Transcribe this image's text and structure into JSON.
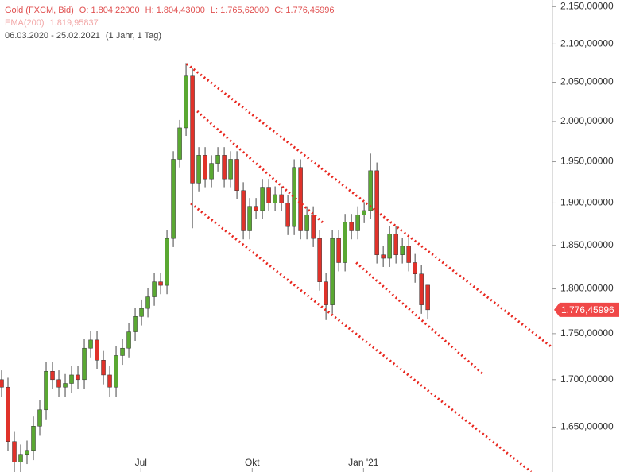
{
  "chart_data": {
    "type": "candlestick",
    "title": "Gold (FXCM, Bid)",
    "ohlc_info": [
      "O: 1.804,22000",
      "H: 1.804,43000",
      "L: 1.765,62000",
      "C: 1.776,45996"
    ],
    "indicator": {
      "name": "EMA(200)",
      "value_text": "1.819,95837"
    },
    "range_text": "06.03.2020 - 25.02.2021",
    "period_text": "(1 Jahr, 1 Tag)",
    "last_label": "1.776,45996",
    "up_color": "#5aa832",
    "down_color": "#e0322a",
    "trendline_color": "#e8261e",
    "log_scale": true,
    "open": [
      1700,
      1692,
      1635,
      1614,
      1622,
      1626,
      1651,
      1668,
      1709,
      1700,
      1692,
      1696,
      1705,
      1700,
      1734,
      1743,
      1721,
      1705,
      1692,
      1726,
      1734,
      1752,
      1769,
      1778,
      1791,
      1808,
      1804,
      1858,
      1953,
      1992,
      2058,
      1924,
      1958,
      1929,
      1948,
      1958,
      1929,
      1953,
      1915,
      1867,
      1896,
      1891,
      1919,
      1900,
      1910,
      1900,
      1872,
      1943,
      1867,
      1886,
      1858,
      1808,
      1782,
      1858,
      1830,
      1877,
      1867,
      1886,
      1891,
      1939,
      1839,
      1835,
      1863,
      1839,
      1849,
      1830,
      1817,
      1804.22
    ],
    "high": [
      1710,
      1702,
      1645,
      1632,
      1636,
      1661,
      1678,
      1719,
      1719,
      1710,
      1706,
      1715,
      1715,
      1744,
      1753,
      1753,
      1731,
      1715,
      1736,
      1744,
      1762,
      1779,
      1788,
      1801,
      1818,
      1818,
      1868,
      1963,
      2002,
      2075,
      2068,
      1968,
      1968,
      1958,
      1968,
      1968,
      1963,
      1963,
      1925,
      1906,
      1906,
      1929,
      1929,
      1920,
      1920,
      1910,
      1953,
      1953,
      1896,
      1896,
      1868,
      1818,
      1868,
      1868,
      1887,
      1887,
      1896,
      1901,
      1960,
      1949,
      1849,
      1873,
      1873,
      1859,
      1859,
      1840,
      1827,
      1804.43
    ],
    "low": [
      1682,
      1625,
      1600,
      1604,
      1612,
      1616,
      1641,
      1658,
      1690,
      1682,
      1682,
      1686,
      1690,
      1690,
      1724,
      1711,
      1695,
      1682,
      1682,
      1716,
      1724,
      1742,
      1759,
      1768,
      1781,
      1794,
      1794,
      1848,
      1943,
      1982,
      1870,
      1914,
      1919,
      1919,
      1938,
      1919,
      1919,
      1905,
      1857,
      1857,
      1881,
      1881,
      1890,
      1890,
      1890,
      1862,
      1862,
      1857,
      1857,
      1848,
      1798,
      1765,
      1772,
      1820,
      1820,
      1857,
      1857,
      1876,
      1881,
      1829,
      1825,
      1825,
      1829,
      1829,
      1820,
      1807,
      1772,
      1765.62
    ],
    "close": [
      1692,
      1635,
      1614,
      1622,
      1626,
      1651,
      1668,
      1709,
      1700,
      1692,
      1696,
      1705,
      1700,
      1734,
      1743,
      1721,
      1705,
      1692,
      1726,
      1734,
      1752,
      1769,
      1778,
      1791,
      1808,
      1804,
      1858,
      1953,
      1992,
      2058,
      1924,
      1958,
      1929,
      1948,
      1958,
      1929,
      1953,
      1915,
      1867,
      1896,
      1891,
      1919,
      1900,
      1910,
      1900,
      1872,
      1943,
      1867,
      1886,
      1858,
      1808,
      1782,
      1858,
      1830,
      1877,
      1867,
      1886,
      1891,
      1939,
      1839,
      1835,
      1863,
      1839,
      1849,
      1830,
      1817,
      1782,
      1776.45996
    ],
    "trendlines": [
      {
        "x": [
          29.1,
          86.6
        ],
        "y": [
          2074,
          1734.6
        ]
      },
      {
        "x": [
          30.75,
          50.75
        ],
        "y": [
          2013,
          1875
        ]
      },
      {
        "x": [
          29.75,
          83.25
        ],
        "y": [
          1899.5,
          1604
        ]
      },
      {
        "x": [
          55.75,
          75.6
        ],
        "y": [
          1830,
          1706.5
        ]
      }
    ],
    "xlim": [
      -0.25,
      86.6
    ],
    "xticks": [
      {
        "value": 21.9,
        "label": "Jul"
      },
      {
        "value": 39.4,
        "label": "Okt"
      },
      {
        "value": 56.9,
        "label": "Jan '21"
      }
    ],
    "ylim": [
      1604,
      2159
    ],
    "yticks": [
      {
        "value": 1650,
        "label": "1.650,00000"
      },
      {
        "value": 1700,
        "label": "1.700,00000"
      },
      {
        "value": 1750,
        "label": "1.750,00000"
      },
      {
        "value": 1800,
        "label": "1.800,00000"
      },
      {
        "value": 1850,
        "label": "1.850,00000"
      },
      {
        "value": 1900,
        "label": "1.900,00000"
      },
      {
        "value": 1950,
        "label": "1.950,00000"
      },
      {
        "value": 2000,
        "label": "2.000,00000"
      },
      {
        "value": 2050,
        "label": "2.050,00000"
      },
      {
        "value": 2100,
        "label": "2.100,00000"
      },
      {
        "value": 2150,
        "label": "2.150,00000"
      }
    ]
  }
}
